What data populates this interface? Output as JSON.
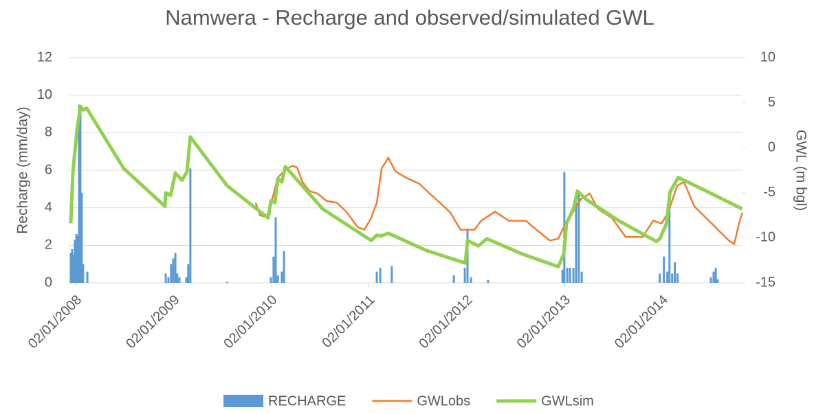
{
  "chart_data": {
    "type": "combo",
    "title": "Namwera - Recharge and observed/simulated GWL",
    "y_label": "Recharge (mm/day)",
    "y2_label": "GWL (m bgl)",
    "xlim": [
      "10/12/2007",
      "30/10/2014"
    ],
    "xticks": [
      "02/01/2008",
      "02/01/2009",
      "02/01/2010",
      "02/01/2011",
      "02/01/2012",
      "02/01/2013",
      "02/01/2014"
    ],
    "ylim": [
      0,
      12
    ],
    "yticks": [
      0,
      2,
      4,
      6,
      8,
      10,
      12
    ],
    "y2lim": [
      -15,
      10
    ],
    "y2ticks": [
      -15,
      -10,
      -5,
      0,
      5,
      10
    ],
    "grid": true,
    "legend": "bottom",
    "series": [
      {
        "name": "RECHARGE",
        "type": "bar",
        "color": "#5b9bd5",
        "x": [
          "15/12/2007",
          "20/12/2007",
          "25/12/2007",
          "30/12/2007",
          "05/01/2008",
          "10/01/2008",
          "15/01/2008",
          "20/01/2008",
          "25/01/2008",
          "30/01/2008",
          "15/02/2008",
          "04/12/2008",
          "14/12/2008",
          "24/12/2008",
          "01/01/2009",
          "09/01/2009",
          "16/01/2009",
          "24/01/2009",
          "19/02/2009",
          "26/02/2009",
          "06/03/2009",
          "21/07/2009",
          "01/01/2010",
          "11/01/2010",
          "19/01/2010",
          "27/01/2010",
          "11/02/2010",
          "19/02/2010",
          "01/02/2011",
          "14/02/2011",
          "29/03/2011",
          "16/11/2011",
          "27/12/2011",
          "06/01/2012",
          "19/01/2012",
          "23/03/2012",
          "26/12/2012",
          "02/01/2013",
          "13/01/2013",
          "23/01/2013",
          "05/02/2013",
          "15/02/2013",
          "25/02/2013",
          "08/03/2013",
          "25/12/2013",
          "09/01/2014",
          "22/01/2014",
          "30/01/2014",
          "09/02/2014",
          "19/02/2014",
          "01/03/2014",
          "04/07/2014",
          "14/07/2014",
          "22/07/2014",
          "29/07/2014"
        ],
        "values": [
          1.6,
          1.8,
          1.5,
          2.3,
          2.6,
          2.5,
          9.5,
          9.4,
          4.8,
          1.0,
          0.6,
          0.5,
          0.3,
          1.0,
          1.3,
          1.6,
          0.5,
          0.3,
          0.3,
          1.0,
          6.1,
          0.05,
          0.3,
          1.4,
          3.5,
          0.4,
          0.6,
          1.7,
          0.6,
          0.8,
          0.9,
          0.4,
          0.8,
          2.9,
          0.3,
          0.15,
          0.7,
          5.9,
          0.8,
          0.8,
          0.8,
          4.3,
          4.8,
          0.6,
          0.5,
          1.4,
          0.6,
          4.0,
          0.5,
          1.1,
          0.5,
          0.3,
          0.6,
          0.8,
          0.2
        ]
      },
      {
        "name": "GWLobs",
        "type": "line",
        "axis": "y2",
        "color": "#ed7d31",
        "width": 2.5,
        "x": [
          "05/11/2009",
          "21/11/2009",
          "16/12/2009",
          "06/01/2010",
          "27/01/2010",
          "24/02/2010",
          "22/03/2010",
          "09/04/2010",
          "29/04/2010",
          "25/05/2010",
          "25/06/2010",
          "28/07/2010",
          "05/09/2010",
          "13/10/2010",
          "21/11/2010",
          "16/12/2010",
          "11/01/2011",
          "01/02/2011",
          "19/02/2011",
          "16/03/2011",
          "11/04/2011",
          "20/05/2011",
          "10/07/2011",
          "18/08/2011",
          "25/09/2011",
          "03/11/2011",
          "11/12/2011",
          "01/02/2012",
          "26/02/2012",
          "18/04/2012",
          "08/06/2012",
          "11/08/2012",
          "19/09/2012",
          "09/11/2012",
          "10/12/2012",
          "31/12/2012",
          "25/01/2013",
          "05/03/2013",
          "07/04/2013",
          "08/05/2013",
          "29/06/2013",
          "19/08/2013",
          "22/10/2013",
          "30/11/2013",
          "31/12/2013",
          "25/01/2014",
          "28/02/2014",
          "25/03/2014",
          "03/05/2014",
          "23/06/2014",
          "09/09/2014",
          "29/09/2014",
          "17/10/2014",
          "30/10/2014"
        ],
        "values": [
          -6.1,
          -7.5,
          -7.7,
          -5.7,
          -3.3,
          -2.5,
          -2.0,
          -2.2,
          -3.8,
          -4.8,
          -5.1,
          -5.9,
          -6.1,
          -7.2,
          -8.8,
          -9.1,
          -7.8,
          -6.1,
          -2.3,
          -1.1,
          -2.6,
          -3.3,
          -4.0,
          -5.1,
          -6.1,
          -7.2,
          -9.1,
          -9.1,
          -8.1,
          -7.1,
          -8.1,
          -8.1,
          -9.1,
          -10.3,
          -10.1,
          -8.8,
          -7.6,
          -5.7,
          -5.1,
          -6.8,
          -7.8,
          -9.9,
          -9.9,
          -8.1,
          -8.4,
          -7.2,
          -4.2,
          -3.8,
          -6.5,
          -8.0,
          -10.3,
          -10.7,
          -8.4,
          -7.2
        ]
      },
      {
        "name": "GWLsim",
        "type": "line",
        "axis": "y2",
        "color": "#92d050",
        "width": 5,
        "x": [
          "15/12/2007",
          "23/12/2007",
          "07/01/2008",
          "20/01/2008",
          "30/01/2008",
          "12/02/2008",
          "30/06/2008",
          "01/12/2008",
          "04/12/2008",
          "22/12/2008",
          "09/01/2009",
          "03/02/2009",
          "21/02/2009",
          "06/03/2009",
          "21/07/2009",
          "22/12/2009",
          "01/01/2010",
          "16/01/2010",
          "27/01/2010",
          "11/02/2010",
          "24/02/2010",
          "14/07/2010",
          "11/01/2011",
          "01/02/2011",
          "16/02/2011",
          "16/03/2011",
          "05/08/2011",
          "29/12/2011",
          "06/01/2012",
          "16/02/2012",
          "18/03/2012",
          "29/07/2012",
          "10/12/2012",
          "31/12/2012",
          "10/01/2013",
          "05/02/2013",
          "20/02/2013",
          "23/03/2013",
          "24/07/2013",
          "12/12/2013",
          "25/12/2013",
          "19/01/2014",
          "01/02/2014",
          "04/03/2014",
          "23/06/2014",
          "29/10/2014"
        ],
        "values": [
          -8.4,
          -2.7,
          1.9,
          4.6,
          4.2,
          4.4,
          -2.3,
          -6.5,
          -5.0,
          -5.3,
          -2.8,
          -3.6,
          -2.7,
          1.2,
          -4.2,
          -7.8,
          -5.9,
          -6.1,
          -3.4,
          -3.8,
          -2.1,
          -6.8,
          -10.3,
          -9.7,
          -9.8,
          -9.5,
          -11.4,
          -12.8,
          -10.3,
          -10.9,
          -10.1,
          -11.8,
          -13.2,
          -11.8,
          -8.4,
          -6.8,
          -4.8,
          -5.7,
          -8.1,
          -10.4,
          -10.1,
          -8.4,
          -4.9,
          -3.3,
          -4.9,
          -6.8
        ]
      }
    ]
  }
}
